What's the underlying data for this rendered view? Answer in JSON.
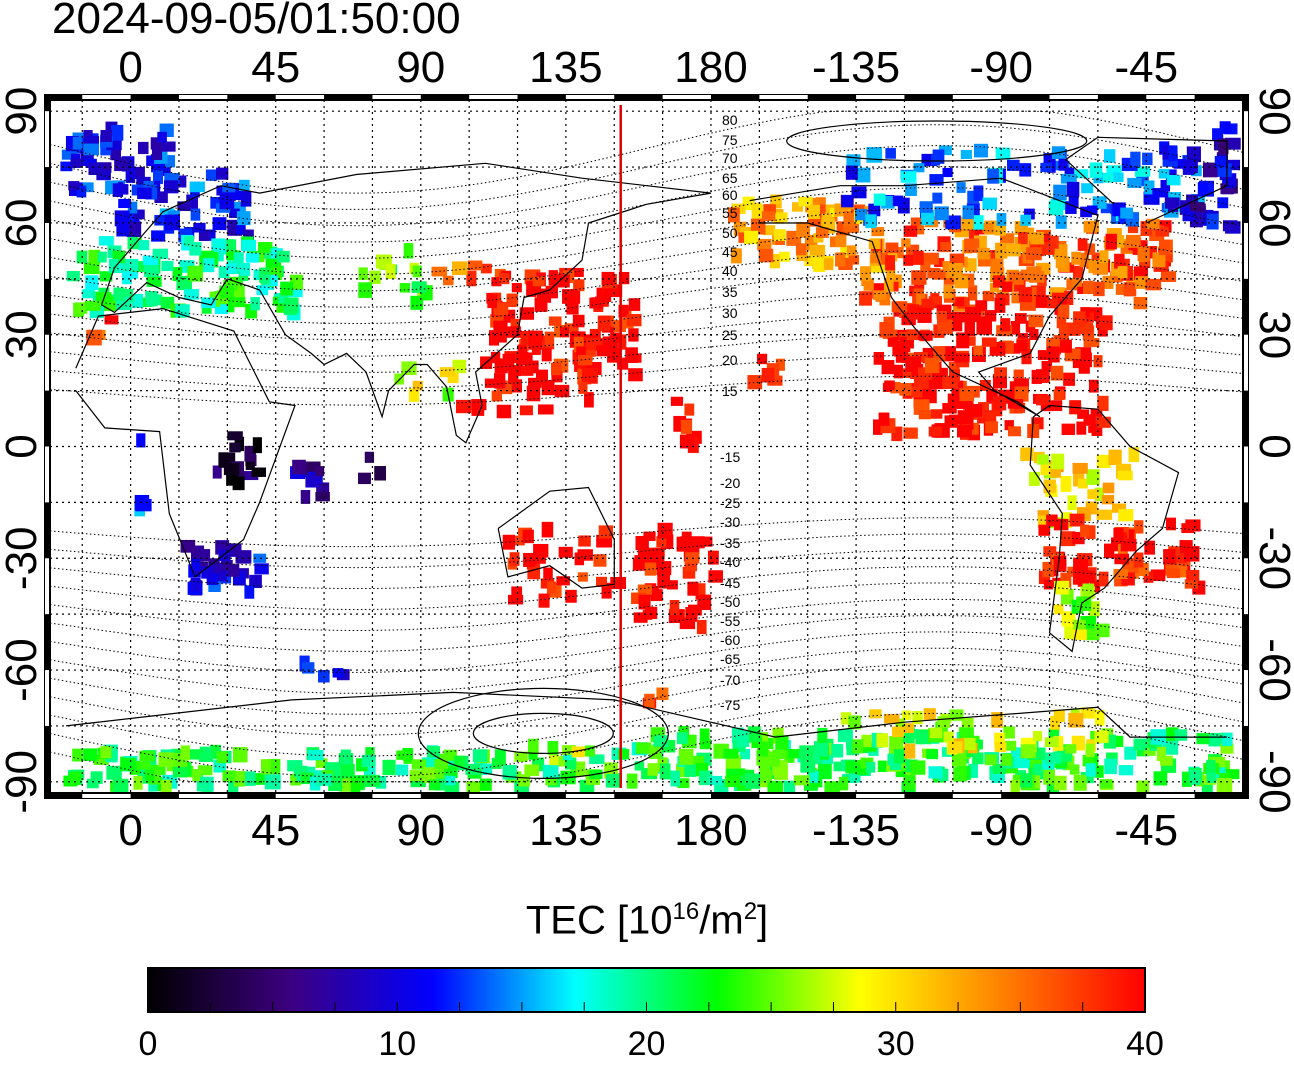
{
  "title": "2024-09-05/01:50:00",
  "map": {
    "lon_ticks": [
      "0",
      "45",
      "90",
      "135",
      "180",
      "-135",
      "-90",
      "-45"
    ],
    "lon_values": [
      0,
      45,
      90,
      135,
      180,
      225,
      270,
      315
    ],
    "lat_ticks": [
      "90",
      "60",
      "30",
      "0",
      "-30",
      "-60",
      "-90"
    ],
    "lat_values": [
      90,
      60,
      30,
      0,
      -30,
      -60,
      -90
    ],
    "lon_range": [
      -25,
      345
    ],
    "lat_range": [
      -93,
      93
    ],
    "grid": "dotted",
    "highlight_meridian_lon": 152,
    "highlight_color": "#e00000",
    "magnetic_lat_labels": [
      "80",
      "75",
      "70",
      "65",
      "60",
      "55",
      "50",
      "45",
      "40",
      "35",
      "30",
      "25",
      "20",
      "15",
      "-15",
      "-20",
      "-25",
      "-30",
      "-35",
      "-40",
      "-45",
      "-50",
      "-55",
      "-60",
      "-65",
      "-70",
      "-75"
    ]
  },
  "colorbar": {
    "label_text": "TEC  [10",
    "label_sup1": "16",
    "label_mid": "/m",
    "label_sup2": "2",
    "label_end": "]",
    "min": 0,
    "max": 40,
    "ticks": [
      "0",
      "10",
      "20",
      "30",
      "40"
    ],
    "colors": [
      "#000000",
      "#3c0080",
      "#0000ff",
      "#00ffff",
      "#00ff00",
      "#ffff00",
      "#ff8000",
      "#ff0000"
    ]
  }
}
